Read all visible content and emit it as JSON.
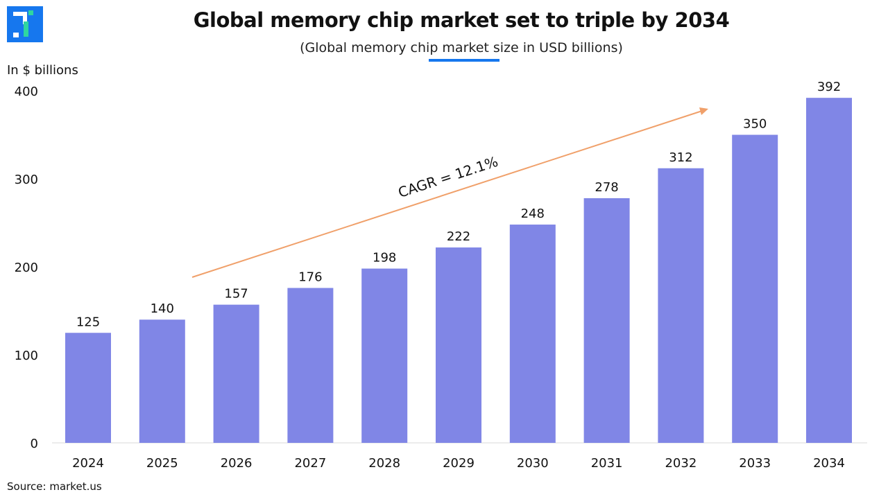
{
  "header": {
    "title": "Global memory chip market set to triple by 2034",
    "subtitle": "(Global memory chip market size in USD billions)",
    "logo_color": "#1677ee"
  },
  "footer": {
    "source": "Source: market.us"
  },
  "chart_data": {
    "type": "bar",
    "title": "Global memory chip market set to triple by 2034",
    "subtitle": "(Global memory chip market size in USD billions)",
    "ylabel": "In $ billions",
    "xlabel": "",
    "categories": [
      "2024",
      "2025",
      "2026",
      "2027",
      "2028",
      "2029",
      "2030",
      "2031",
      "2032",
      "2033",
      "2034"
    ],
    "values": [
      125,
      140,
      157,
      176,
      198,
      222,
      248,
      278,
      312,
      350,
      392
    ],
    "ylim": [
      0,
      400
    ],
    "yticks": [
      0,
      100,
      200,
      300,
      400
    ],
    "grid": false,
    "bar_color": "#8086e6",
    "annotation": {
      "text": "CAGR = 12.1%",
      "color": "#f0a06a"
    }
  }
}
